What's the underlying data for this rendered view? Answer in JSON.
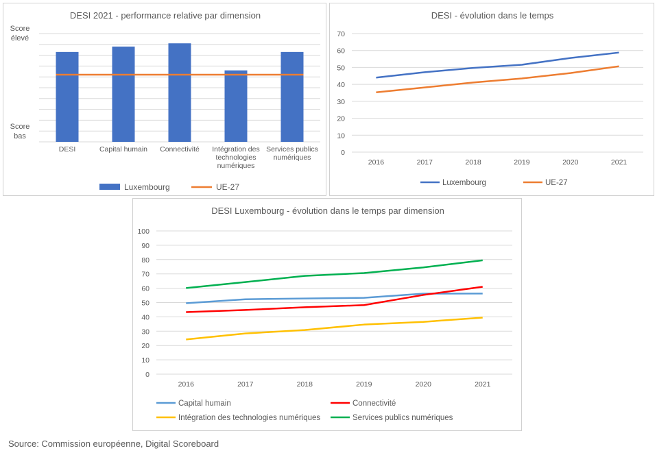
{
  "source": "Source: Commission européenne, Digital Scoreboard",
  "chart_data": [
    {
      "type": "bar",
      "title": "DESI 2021  - performance relative par dimension",
      "categories": [
        [
          "DESI"
        ],
        [
          "Capital humain"
        ],
        [
          "Connectivité"
        ],
        [
          "Intégration des",
          "technologies",
          "numériques"
        ],
        [
          "Services publics",
          "numériques"
        ]
      ],
      "y_top_label": [
        "Score",
        "élevé"
      ],
      "y_bottom_label": [
        "Score",
        "bas"
      ],
      "ylim": [
        0,
        10
      ],
      "grid": true,
      "legend_position": "bottom",
      "series": [
        {
          "name": "Luxembourg",
          "kind": "bar",
          "color": "#4472c4",
          "values": [
            8.3,
            8.8,
            9.1,
            6.6,
            8.3
          ]
        },
        {
          "name": "UE-27",
          "kind": "line",
          "color": "#ed7d31",
          "values": [
            6.2,
            6.2,
            6.2,
            6.2,
            6.2
          ]
        }
      ]
    },
    {
      "type": "line",
      "title": "DESI - évolution dans le temps",
      "categories": [
        "2016",
        "2017",
        "2018",
        "2019",
        "2020",
        "2021"
      ],
      "ylim": [
        0,
        70
      ],
      "yticks": [
        0,
        10,
        20,
        30,
        40,
        50,
        60,
        70
      ],
      "grid": true,
      "legend_position": "bottom",
      "series": [
        {
          "name": "Luxembourg",
          "color": "#4472c4",
          "values": [
            44,
            47.2,
            49.7,
            51.6,
            55.6,
            58.8
          ]
        },
        {
          "name": "UE-27",
          "color": "#ed7d31",
          "values": [
            35.3,
            38.2,
            41.1,
            43.5,
            46.7,
            50.7
          ]
        }
      ]
    },
    {
      "type": "line",
      "title": "DESI Luxembourg - évolution dans le temps par dimension",
      "categories": [
        "2016",
        "2017",
        "2018",
        "2019",
        "2020",
        "2021"
      ],
      "ylim": [
        0,
        100
      ],
      "yticks": [
        0,
        10,
        20,
        30,
        40,
        50,
        60,
        70,
        80,
        90,
        100
      ],
      "grid": true,
      "legend_position": "bottom",
      "series": [
        {
          "name": "Capital humain",
          "color": "#5b9bd5",
          "values": [
            49.5,
            52.3,
            52.8,
            53.3,
            56.2,
            56.3
          ]
        },
        {
          "name": "Connectivité",
          "color": "#ff0000",
          "values": [
            43.3,
            44.8,
            46.7,
            48.2,
            55.3,
            61
          ]
        },
        {
          "name": "Intégration des technologies numériques",
          "color": "#ffc000",
          "values": [
            24.2,
            28.4,
            30.8,
            34.6,
            36.5,
            39.5
          ]
        },
        {
          "name": "Services publics numériques",
          "color": "#00b050",
          "values": [
            60.1,
            64.3,
            68.6,
            70.6,
            74.5,
            79.5
          ]
        }
      ]
    }
  ]
}
